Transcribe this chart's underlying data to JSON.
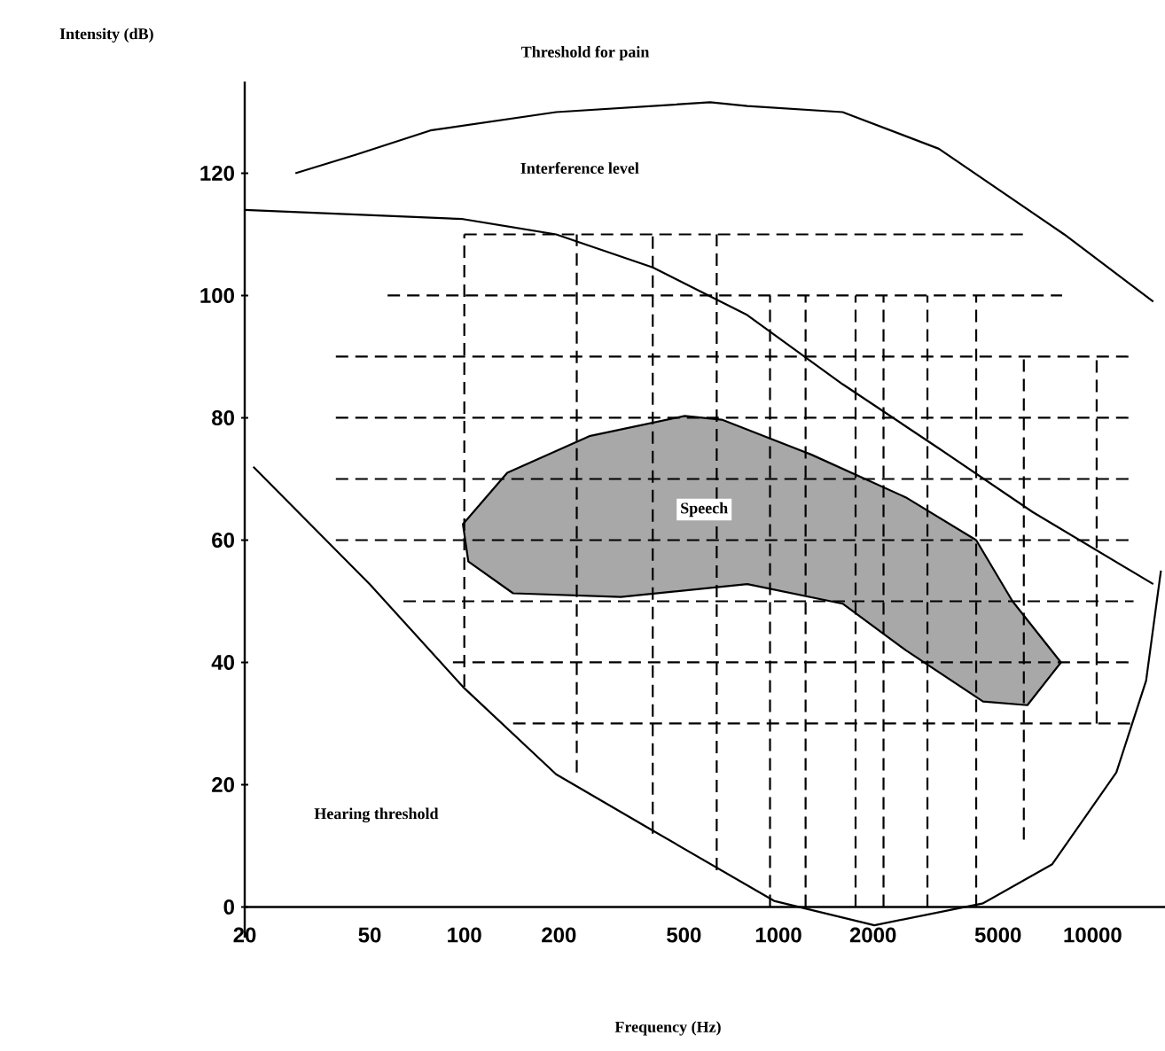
{
  "chart_data": {
    "type": "line",
    "xlabel": "Frequency (Hz)",
    "ylabel": "Intensity (dB)",
    "log": "x",
    "xlim": [
      20,
      17000
    ],
    "ylim": [
      -5,
      135
    ],
    "xticks": [
      20,
      50,
      100,
      200,
      500,
      1000,
      2000,
      5000,
      10000
    ],
    "yticks": [
      0,
      20,
      40,
      60,
      80,
      100,
      120
    ],
    "grid": false,
    "annotations": [
      "Threshold for pain",
      "Interference level",
      {
        "text": "Speech",
        "x": 580,
        "y": 65
      },
      "Hearing threshold"
    ],
    "series": [
      {
        "color": "#000000",
        "line_style": "solid",
        "x": [
          29,
          45,
          78,
          196,
          606,
          796,
          1600,
          3240,
          8120,
          15600
        ],
        "values": [
          120,
          123,
          127,
          130,
          131.6,
          131,
          130,
          124,
          110,
          99
        ]
      },
      {
        "color": "#000000",
        "line_style": "solid",
        "x": [
          20,
          99,
          196,
          398,
          796,
          1600,
          3240,
          6440,
          15600
        ],
        "values": [
          114,
          112.5,
          110,
          104.6,
          96.8,
          85.5,
          75,
          64.6,
          52.8
        ]
      },
      {
        "color": "#000000",
        "line_style": "solid",
        "x": [
          21.3,
          50,
          99,
          196,
          398,
          968,
          2020,
          4480,
          7440,
          11900,
          14800,
          16500
        ],
        "values": [
          72,
          52.8,
          36,
          21.7,
          12.5,
          1,
          -3,
          0.6,
          7,
          22,
          37,
          55
        ]
      },
      {
        "type": "area",
        "color": "#a8a8a8",
        "line_style": "solid",
        "x": [
          99,
          137,
          250,
          503,
          660,
          1270,
          2540,
          4260,
          5560,
          7930,
          6200,
          4480,
          2540,
          1600,
          796,
          315,
          143,
          103,
          99
        ],
        "values": [
          62.6,
          71,
          77,
          80.3,
          79.7,
          74,
          67,
          60,
          50,
          40,
          33,
          33.6,
          42,
          49.6,
          52.8,
          50.7,
          51.3,
          56.5,
          62.6
        ]
      },
      {
        "color": "#000000",
        "line_style": "dashed",
        "x": [
          100,
          6000
        ],
        "values": [
          110,
          110
        ]
      },
      {
        "color": "#000000",
        "line_style": "dashed",
        "x": [
          57,
          8000
        ],
        "values": [
          100,
          100
        ]
      },
      {
        "color": "#000000",
        "line_style": "dashed",
        "x": [
          39,
          13000
        ],
        "values": [
          90,
          90
        ]
      },
      {
        "color": "#000000",
        "line_style": "dashed",
        "x": [
          39,
          13000
        ],
        "values": [
          80,
          80
        ]
      },
      {
        "color": "#000000",
        "line_style": "dashed",
        "x": [
          39,
          13000
        ],
        "values": [
          70,
          70
        ]
      },
      {
        "color": "#000000",
        "line_style": "dashed",
        "x": [
          39,
          13000
        ],
        "values": [
          60,
          60
        ]
      },
      {
        "color": "#000000",
        "line_style": "dashed",
        "x": [
          64,
          13500
        ],
        "values": [
          50,
          50
        ]
      },
      {
        "color": "#000000",
        "line_style": "dashed",
        "x": [
          92,
          13500
        ],
        "values": [
          40,
          40
        ]
      },
      {
        "color": "#000000",
        "line_style": "dashed",
        "x": [
          143,
          13500
        ],
        "values": [
          30,
          30
        ]
      },
      {
        "color": "#000000",
        "line_style": "dashed",
        "x": [
          100,
          100
        ],
        "values": [
          36,
          110
        ]
      },
      {
        "color": "#000000",
        "line_style": "dashed",
        "x": [
          228,
          228
        ],
        "values": [
          22,
          110
        ]
      },
      {
        "color": "#000000",
        "line_style": "dashed",
        "x": [
          398,
          398
        ],
        "values": [
          12,
          110
        ]
      },
      {
        "color": "#000000",
        "line_style": "dashed",
        "x": [
          636,
          636
        ],
        "values": [
          6,
          110
        ]
      },
      {
        "color": "#000000",
        "line_style": "dashed",
        "x": [
          940,
          940
        ],
        "values": [
          0,
          100
        ]
      },
      {
        "color": "#000000",
        "line_style": "dashed",
        "x": [
          1220,
          1220
        ],
        "values": [
          0,
          100
        ]
      },
      {
        "color": "#000000",
        "line_style": "dashed",
        "x": [
          1760,
          1760
        ],
        "values": [
          0,
          100
        ]
      },
      {
        "color": "#000000",
        "line_style": "dashed",
        "x": [
          2160,
          2160
        ],
        "values": [
          0,
          100
        ]
      },
      {
        "color": "#000000",
        "line_style": "dashed",
        "x": [
          2980,
          2980
        ],
        "values": [
          0,
          100
        ]
      },
      {
        "color": "#000000",
        "line_style": "dashed",
        "x": [
          4260,
          4260
        ],
        "values": [
          0,
          100
        ]
      },
      {
        "color": "#000000",
        "line_style": "dashed",
        "x": [
          6040,
          6040
        ],
        "values": [
          11,
          90
        ]
      },
      {
        "color": "#000000",
        "line_style": "dashed",
        "x": [
          10300,
          10300
        ],
        "values": [
          30,
          90
        ]
      }
    ]
  }
}
